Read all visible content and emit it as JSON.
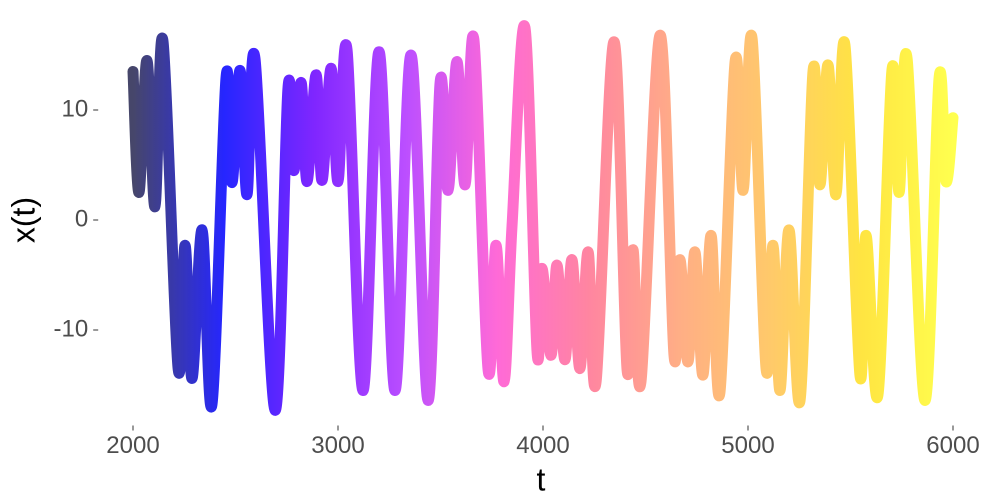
{
  "chart_data": {
    "type": "line",
    "x_label": "t",
    "y_label": "x(t)",
    "x": [
      2000,
      2029,
      2068,
      2107,
      2146,
      2220,
      2254,
      2288,
      2337,
      2385,
      2454,
      2483,
      2522,
      2556,
      2595,
      2693,
      2756,
      2785,
      2820,
      2849,
      2893,
      2922,
      2966,
      3000,
      3044,
      3122,
      3200,
      3278,
      3356,
      3439,
      3498,
      3537,
      3580,
      3620,
      3663,
      3732,
      3771,
      3810,
      3849,
      3912,
      3971,
      3995,
      4039,
      4068,
      4107,
      4141,
      4180,
      4220,
      4259,
      4346,
      4410,
      4439,
      4478,
      4571,
      4639,
      4668,
      4707,
      4741,
      4780,
      4820,
      4863,
      4937,
      4976,
      5020,
      5088,
      5122,
      5156,
      5200,
      5254,
      5317,
      5351,
      5390,
      5429,
      5473,
      5546,
      5576,
      5634,
      5702,
      5737,
      5776,
      5863,
      5932,
      5966,
      6000
    ],
    "values": [
      13.5,
      2.5,
      14.5,
      1.2,
      16.3,
      -13.5,
      -2.3,
      -14.4,
      -0.9,
      -16.8,
      13,
      3.4,
      13.6,
      2.3,
      14.7,
      -17.3,
      12,
      4.5,
      12.5,
      3.5,
      13.2,
      3.6,
      13.8,
      3.5,
      15.5,
      -15.5,
      15.3,
      -15.5,
      15,
      -16.4,
      12.5,
      2.7,
      14.4,
      3.2,
      16.4,
      -13.6,
      -2.3,
      -14.7,
      -0.5,
      17.5,
      -12,
      -4.4,
      -12.3,
      -4.1,
      -12.7,
      -3.6,
      -13.5,
      -2.9,
      -14.7,
      16.2,
      -13.6,
      -2.7,
      -14.7,
      16.8,
      -12.3,
      -3.6,
      -12.9,
      -2.9,
      -14.1,
      -1.4,
      -15.7,
      14.4,
      2.7,
      16.5,
      -13.5,
      -2.3,
      -15.5,
      -0.9,
      -16.4,
      13.5,
      3.2,
      14.1,
      2.3,
      15.9,
      -14.1,
      -1.4,
      -15.9,
      13.6,
      2.5,
      14.7,
      -16.4,
      12.9,
      3.5,
      9.3
    ],
    "colors": [
      "#262650",
      "#0000ff",
      "#6a00ff",
      "#b030ff",
      "#ff50d0",
      "#ff7090",
      "#ffa070",
      "#ffc050",
      "#ffe020",
      "#ffff30"
    ],
    "xlim": [
      1840,
      6160
    ],
    "ylim": [
      -18.5,
      18.6
    ],
    "xticks": [
      2000,
      3000,
      4000,
      5000,
      6000
    ],
    "yticks": [
      -10,
      0,
      10
    ],
    "grid": false
  }
}
